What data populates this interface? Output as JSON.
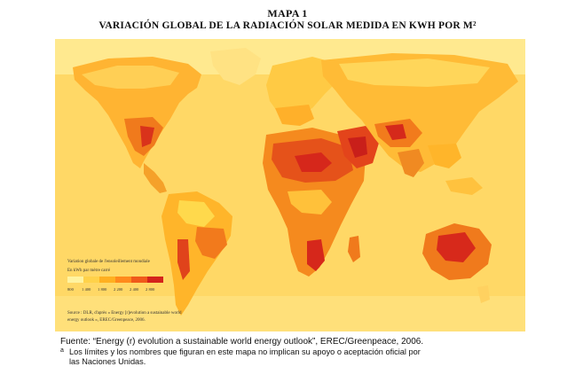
{
  "title": {
    "main": "MAPA 1",
    "sub": "VARIACIÓN GLOBAL DE LA RADIACIÓN SOLAR MEDIDA EN KWH POR M²"
  },
  "legend": {
    "title_line1": "Variation globale de l'ensoleillement mondiale",
    "title_line2": "En kWh par mètre carré",
    "ticks": [
      "800",
      "1 400",
      "1 800",
      "2 200",
      "2 400",
      "2 800"
    ],
    "colors": [
      "#fff3a0",
      "#ffd24a",
      "#ffb020",
      "#ff8a1c",
      "#f05a1a",
      "#d4231b"
    ],
    "source_line1": "Source : DLR, d'après « Energy [r]evolution a sustainable world",
    "source_line2": "energy outlook », EREC/Greenpeace, 2006."
  },
  "map": {
    "ocean_color": "#ffd866",
    "regions": [
      "North America",
      "South America",
      "Europe",
      "Africa",
      "Middle East",
      "Asia",
      "Australia",
      "Greenland"
    ]
  },
  "footer": {
    "source": "Fuente: “Energy (r) evolution a sustainable world energy outlook”, EREC/Greenpeace, 2006.",
    "note_mark": "a",
    "note_line1": "Los límites y los nombres que figuran en este mapa no implican su apoyo o aceptación oficial por",
    "note_line2": "las Naciones Unidas."
  }
}
